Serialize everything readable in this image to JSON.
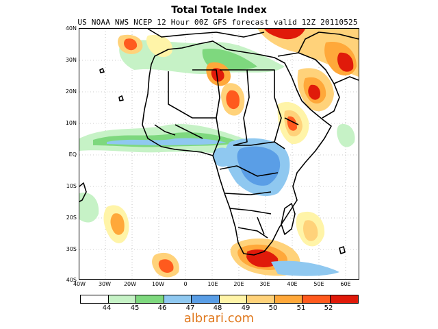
{
  "title": "Total Totale Index",
  "subtitle": "US NOAA NWS NCEP 12 Hour 00Z GFS forecast valid 12Z 20110525",
  "lat_labels": [
    "40N",
    "30N",
    "20N",
    "10N",
    "EQ",
    "10S",
    "20S",
    "30S",
    "40S"
  ],
  "lon_labels": [
    "40W",
    "30W",
    "20W",
    "10W",
    "0",
    "10E",
    "20E",
    "30E",
    "40E",
    "50E",
    "60E"
  ],
  "colorbar": {
    "colors": [
      "#ffffff",
      "#c6f2c6",
      "#7ed87e",
      "#8fc8f0",
      "#5a9ee6",
      "#fff4a8",
      "#ffd27a",
      "#ffa83a",
      "#ff5a1e",
      "#e01a0a"
    ],
    "labels": [
      "44",
      "45",
      "46",
      "47",
      "48",
      "49",
      "50",
      "51",
      "52"
    ]
  },
  "watermark": "albrari.com"
}
